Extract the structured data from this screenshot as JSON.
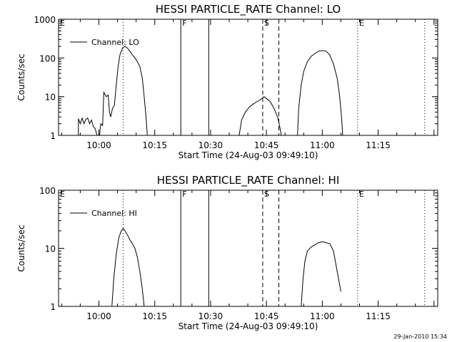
{
  "colors": {
    "background": "#ffffff",
    "ink": "#000000"
  },
  "footer": {
    "timestamp": "29-Jan-2010 15:34"
  },
  "chart_data": [
    {
      "type": "line",
      "title": "HESSI PARTICLE_RATE Channel: LO",
      "xlabel": "Start Time (24-Aug-03 09:49:10)",
      "ylabel": "Counts/sec",
      "y_scale": "log",
      "ylim": [
        1,
        1000
      ],
      "xlim": [
        "09:49:10",
        "11:31:00"
      ],
      "x_ticks": [
        "10:00",
        "10:15",
        "10:30",
        "10:45",
        "11:00",
        "11:15"
      ],
      "y_ticks": [
        "1",
        "10",
        "100",
        "1000"
      ],
      "legend": {
        "label": "Channel: LO",
        "position": "top-left"
      },
      "markers": [
        {
          "label": "E",
          "time": "09:49:10",
          "style": "dotted"
        },
        {
          "label": "",
          "time": "10:06:30",
          "style": "dotted"
        },
        {
          "label": "F",
          "time": "10:22:00",
          "style": "solid"
        },
        {
          "label": "",
          "time": "10:29:30",
          "style": "solid"
        },
        {
          "label": "S",
          "time": "10:44:00",
          "style": "dashed"
        },
        {
          "label": "",
          "time": "10:48:20",
          "style": "dashed"
        },
        {
          "label": "E",
          "time": "11:09:30",
          "style": "dotted"
        },
        {
          "label": "",
          "time": "11:27:30",
          "style": "dotted"
        }
      ],
      "series": [
        {
          "segments": [
            [
              [
                "09:54:30",
                1
              ],
              [
                "09:54:30",
                2.7
              ],
              [
                "09:55:00",
                2
              ],
              [
                "09:55:30",
                2.8
              ],
              [
                "09:56:00",
                2
              ],
              [
                "09:56:30",
                2.6
              ],
              [
                "09:57:00",
                2.8
              ],
              [
                "09:57:30",
                2
              ],
              [
                "09:58:00",
                2.5
              ],
              [
                "09:58:30",
                1.7
              ],
              [
                "09:59:00",
                1.5
              ],
              [
                "09:59:30",
                1
              ]
            ],
            [
              [
                "10:00:10",
                1
              ],
              [
                "10:00:30",
                2
              ],
              [
                "10:01:00",
                1.8
              ],
              [
                "10:01:20",
                13
              ],
              [
                "10:02:00",
                10
              ],
              [
                "10:02:30",
                11
              ],
              [
                "10:02:50",
                4
              ],
              [
                "10:03:10",
                3
              ],
              [
                "10:03:40",
                5
              ],
              [
                "10:04:10",
                6
              ],
              [
                "10:04:40",
                20
              ],
              [
                "10:05:10",
                60
              ],
              [
                "10:05:40",
                120
              ],
              [
                "10:06:20",
                180
              ],
              [
                "10:07:00",
                200
              ],
              [
                "10:07:40",
                180
              ],
              [
                "10:08:20",
                150
              ],
              [
                "10:09:00",
                120
              ],
              [
                "10:09:40",
                100
              ],
              [
                "10:10:20",
                80
              ],
              [
                "10:11:00",
                60
              ],
              [
                "10:11:40",
                30
              ],
              [
                "10:12:10",
                10
              ],
              [
                "10:12:40",
                3
              ],
              [
                "10:13:00",
                1
              ]
            ],
            [
              [
                "10:37:40",
                1
              ],
              [
                "10:38:20",
                2.5
              ],
              [
                "10:39:20",
                4
              ],
              [
                "10:40:30",
                5.5
              ],
              [
                "10:41:30",
                6.5
              ],
              [
                "10:42:30",
                7.5
              ],
              [
                "10:43:30",
                8.5
              ],
              [
                "10:44:20",
                10
              ],
              [
                "10:45:00",
                9
              ],
              [
                "10:46:00",
                7.5
              ],
              [
                "10:47:00",
                5
              ],
              [
                "10:48:00",
                3
              ],
              [
                "10:48:40",
                1.5
              ],
              [
                "10:49:00",
                1
              ]
            ],
            [
              [
                "10:53:20",
                1
              ],
              [
                "10:53:40",
                5
              ],
              [
                "10:54:20",
                20
              ],
              [
                "10:55:00",
                45
              ],
              [
                "10:56:00",
                80
              ],
              [
                "10:57:00",
                110
              ],
              [
                "10:58:00",
                130
              ],
              [
                "10:59:00",
                150
              ],
              [
                "11:00:00",
                155
              ],
              [
                "11:01:00",
                150
              ],
              [
                "11:02:00",
                120
              ],
              [
                "11:03:00",
                70
              ],
              [
                "11:04:00",
                30
              ],
              [
                "11:04:40",
                10
              ],
              [
                "11:05:10",
                3
              ],
              [
                "11:05:30",
                1
              ]
            ]
          ]
        }
      ]
    },
    {
      "type": "line",
      "title": "HESSI PARTICLE_RATE Channel: HI",
      "xlabel": "Start Time (24-Aug-03 09:49:10)",
      "ylabel": "Counts/sec",
      "y_scale": "log",
      "ylim": [
        1,
        100
      ],
      "xlim": [
        "09:49:10",
        "11:31:00"
      ],
      "x_ticks": [
        "10:00",
        "10:15",
        "10:30",
        "10:45",
        "11:00",
        "11:15"
      ],
      "y_ticks": [
        "1",
        "10",
        "100"
      ],
      "legend": {
        "label": "Channel: HI",
        "position": "top-left"
      },
      "markers": [
        {
          "label": "E",
          "time": "09:49:10",
          "style": "dotted"
        },
        {
          "label": "",
          "time": "10:06:30",
          "style": "dotted"
        },
        {
          "label": "F",
          "time": "10:22:00",
          "style": "solid"
        },
        {
          "label": "",
          "time": "10:29:30",
          "style": "solid"
        },
        {
          "label": "S",
          "time": "10:44:00",
          "style": "dashed"
        },
        {
          "label": "",
          "time": "10:48:20",
          "style": "dashed"
        },
        {
          "label": "E",
          "time": "11:09:30",
          "style": "dotted"
        },
        {
          "label": "",
          "time": "11:27:30",
          "style": "dotted"
        }
      ],
      "series": [
        {
          "segments": [
            [
              [
                "10:03:30",
                1
              ],
              [
                "10:04:00",
                3
              ],
              [
                "10:04:40",
                8
              ],
              [
                "10:05:20",
                15
              ],
              [
                "10:06:00",
                20
              ],
              [
                "10:06:30",
                22
              ],
              [
                "10:07:00",
                20
              ],
              [
                "10:07:40",
                17
              ],
              [
                "10:08:20",
                14
              ],
              [
                "10:09:00",
                12
              ],
              [
                "10:09:40",
                10
              ],
              [
                "10:10:20",
                7
              ],
              [
                "10:11:00",
                4
              ],
              [
                "10:11:40",
                2
              ],
              [
                "10:12:10",
                1
              ]
            ],
            [
              [
                "10:54:20",
                1
              ],
              [
                "10:54:50",
                3
              ],
              [
                "10:55:20",
                6
              ],
              [
                "10:56:00",
                9
              ],
              [
                "10:57:00",
                10.5
              ],
              [
                "10:58:00",
                11.5
              ],
              [
                "10:59:00",
                12.5
              ],
              [
                "11:00:00",
                13
              ],
              [
                "11:01:00",
                12.5
              ],
              [
                "11:02:00",
                12
              ],
              [
                "11:03:00",
                9
              ],
              [
                "11:04:00",
                4
              ],
              [
                "11:05:00",
                1.8
              ]
            ]
          ]
        }
      ]
    }
  ]
}
